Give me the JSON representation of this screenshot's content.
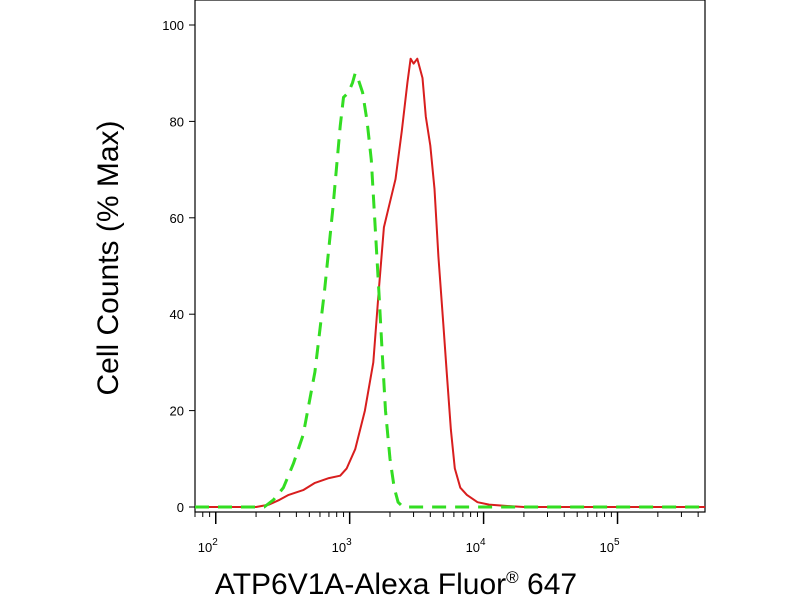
{
  "chart_data": {
    "type": "line",
    "title": "",
    "xlabel": "ATP6V1A-Alexa Fluor",
    "xlabel_superscript": "®",
    "xlabel_suffix": " 647",
    "ylabel": "Cell Counts (% Max)",
    "x_scale": "log",
    "xlim": [
      70,
      450000
    ],
    "ylim": [
      0,
      105
    ],
    "grid": false,
    "legend": "none",
    "y_ticks": [
      {
        "value": 0,
        "label": "0"
      },
      {
        "value": 20,
        "label": "20"
      },
      {
        "value": 40,
        "label": "40"
      },
      {
        "value": 60,
        "label": "60"
      },
      {
        "value": 80,
        "label": "80"
      },
      {
        "value": 100,
        "label": "100"
      }
    ],
    "x_ticks": [
      {
        "value": 100,
        "base": "10",
        "exp": "2"
      },
      {
        "value": 1000,
        "base": "10",
        "exp": "3"
      },
      {
        "value": 10000,
        "base": "10",
        "exp": "4"
      },
      {
        "value": 100000,
        "base": "10",
        "exp": "5"
      }
    ],
    "series": [
      {
        "color": "#d81e1e",
        "style": "solid",
        "points": [
          [
            70,
            0
          ],
          [
            200,
            0
          ],
          [
            250,
            0.5
          ],
          [
            300,
            1.5
          ],
          [
            350,
            2.5
          ],
          [
            450,
            3.5
          ],
          [
            550,
            5
          ],
          [
            700,
            6
          ],
          [
            850,
            6.5
          ],
          [
            950,
            8
          ],
          [
            1100,
            12
          ],
          [
            1300,
            20
          ],
          [
            1500,
            30
          ],
          [
            1650,
            45
          ],
          [
            1800,
            58
          ],
          [
            1950,
            62
          ],
          [
            2200,
            68
          ],
          [
            2450,
            78
          ],
          [
            2700,
            88
          ],
          [
            2850,
            93
          ],
          [
            3000,
            92
          ],
          [
            3200,
            93
          ],
          [
            3500,
            89
          ],
          [
            3700,
            81
          ],
          [
            4000,
            75
          ],
          [
            4300,
            66
          ],
          [
            4600,
            52
          ],
          [
            5000,
            38
          ],
          [
            5300,
            28
          ],
          [
            5700,
            16
          ],
          [
            6100,
            8
          ],
          [
            6700,
            4
          ],
          [
            7500,
            2.5
          ],
          [
            9000,
            1
          ],
          [
            11000,
            0.5
          ],
          [
            15000,
            0.2
          ],
          [
            20000,
            0
          ],
          [
            450000,
            0
          ]
        ]
      },
      {
        "color": "#33dd22",
        "style": "dashed",
        "points": [
          [
            70,
            0
          ],
          [
            230,
            0
          ],
          [
            270,
            1.5
          ],
          [
            320,
            4
          ],
          [
            380,
            9
          ],
          [
            450,
            15
          ],
          [
            550,
            28
          ],
          [
            650,
            45
          ],
          [
            750,
            62
          ],
          [
            850,
            79
          ],
          [
            900,
            85
          ],
          [
            980,
            86
          ],
          [
            1050,
            88
          ],
          [
            1100,
            90
          ],
          [
            1150,
            89
          ],
          [
            1250,
            86
          ],
          [
            1350,
            80
          ],
          [
            1450,
            72
          ],
          [
            1550,
            58
          ],
          [
            1650,
            45
          ],
          [
            1750,
            32
          ],
          [
            1850,
            20
          ],
          [
            2000,
            10
          ],
          [
            2150,
            4
          ],
          [
            2300,
            1
          ],
          [
            2500,
            0
          ],
          [
            450000,
            0
          ]
        ]
      }
    ]
  }
}
